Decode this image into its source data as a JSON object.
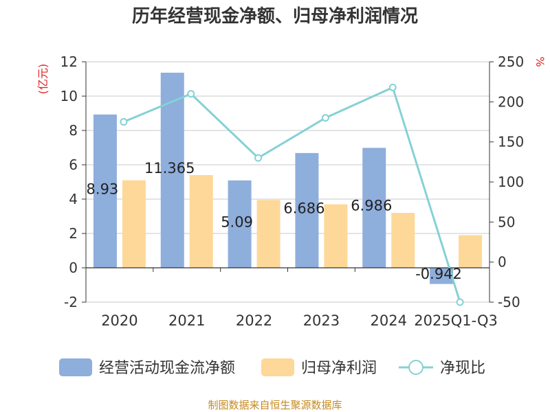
{
  "chart_data": {
    "type": "bar",
    "title": "历年经营现金净额、归母净利润情况",
    "categories": [
      "2020",
      "2021",
      "2022",
      "2023",
      "2024",
      "2025Q1-Q3"
    ],
    "series": [
      {
        "name": "经营活动现金流净额",
        "type": "bar",
        "axis": "left",
        "values": [
          8.93,
          11.365,
          5.09,
          6.686,
          6.986,
          -0.942
        ],
        "labels": [
          "8.93",
          "11.365",
          "5.09",
          "6.686",
          "6.986",
          "-0.942"
        ]
      },
      {
        "name": "归母净利润",
        "type": "bar",
        "axis": "left",
        "values": [
          5.1,
          5.4,
          3.95,
          3.7,
          3.2,
          1.9
        ]
      },
      {
        "name": "净现比",
        "type": "line",
        "axis": "right",
        "values": [
          175,
          210,
          130,
          180,
          218,
          -50
        ]
      }
    ],
    "y_left": {
      "unit": "(亿元)",
      "ylim": [
        -2,
        12
      ],
      "ticks": [
        -2,
        0,
        2,
        4,
        6,
        8,
        10,
        12
      ]
    },
    "y_right": {
      "unit": "%",
      "ylim": [
        -50,
        250
      ],
      "ticks": [
        -50,
        0,
        50,
        100,
        150,
        200,
        250
      ]
    },
    "grid": true,
    "legend_position": "bottom",
    "colors": {
      "cash": "#8eaedc",
      "profit": "#fdd898",
      "ratio": "#85d1d5"
    }
  },
  "source": "制图数据来自恒生聚源数据库"
}
